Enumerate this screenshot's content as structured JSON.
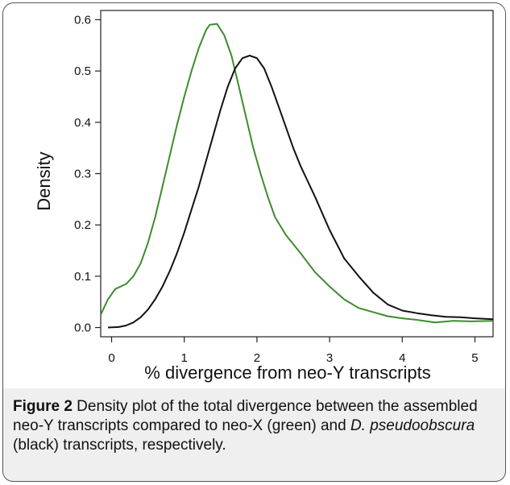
{
  "chart_data": {
    "type": "line",
    "xlabel": "% divergence from neo-Y transcripts",
    "ylabel": "Density",
    "xlim": [
      -0.15,
      5.25
    ],
    "ylim": [
      -0.018,
      0.618
    ],
    "x_ticks": [
      0,
      1,
      2,
      3,
      4,
      5
    ],
    "y_ticks": [
      0.0,
      0.1,
      0.2,
      0.3,
      0.4,
      0.5,
      0.6
    ],
    "y_tick_labels": [
      "0.0",
      "0.1",
      "0.2",
      "0.3",
      "0.4",
      "0.5",
      "0.6"
    ],
    "grid": false,
    "series": [
      {
        "color": "#3c8c2e",
        "points": [
          [
            -0.15,
            0.025
          ],
          [
            -0.05,
            0.055
          ],
          [
            0.05,
            0.075
          ],
          [
            0.2,
            0.085
          ],
          [
            0.3,
            0.1
          ],
          [
            0.4,
            0.125
          ],
          [
            0.5,
            0.165
          ],
          [
            0.6,
            0.215
          ],
          [
            0.7,
            0.275
          ],
          [
            0.8,
            0.335
          ],
          [
            0.9,
            0.395
          ],
          [
            1.0,
            0.45
          ],
          [
            1.1,
            0.5
          ],
          [
            1.2,
            0.545
          ],
          [
            1.3,
            0.58
          ],
          [
            1.35,
            0.59
          ],
          [
            1.45,
            0.592
          ],
          [
            1.55,
            0.57
          ],
          [
            1.65,
            0.53
          ],
          [
            1.75,
            0.47
          ],
          [
            1.85,
            0.41
          ],
          [
            1.95,
            0.35
          ],
          [
            2.05,
            0.3
          ],
          [
            2.15,
            0.255
          ],
          [
            2.25,
            0.215
          ],
          [
            2.4,
            0.18
          ],
          [
            2.6,
            0.145
          ],
          [
            2.8,
            0.108
          ],
          [
            3.0,
            0.08
          ],
          [
            3.2,
            0.055
          ],
          [
            3.4,
            0.038
          ],
          [
            3.6,
            0.03
          ],
          [
            3.8,
            0.022
          ],
          [
            4.0,
            0.018
          ],
          [
            4.2,
            0.015
          ],
          [
            4.45,
            0.01
          ],
          [
            4.7,
            0.013
          ],
          [
            4.95,
            0.012
          ],
          [
            5.25,
            0.013
          ]
        ]
      },
      {
        "color": "#111111",
        "points": [
          [
            -0.05,
            0.0
          ],
          [
            0.1,
            0.001
          ],
          [
            0.2,
            0.004
          ],
          [
            0.3,
            0.01
          ],
          [
            0.4,
            0.02
          ],
          [
            0.5,
            0.035
          ],
          [
            0.6,
            0.055
          ],
          [
            0.7,
            0.08
          ],
          [
            0.8,
            0.11
          ],
          [
            0.9,
            0.145
          ],
          [
            1.0,
            0.185
          ],
          [
            1.1,
            0.23
          ],
          [
            1.2,
            0.275
          ],
          [
            1.3,
            0.325
          ],
          [
            1.4,
            0.375
          ],
          [
            1.5,
            0.425
          ],
          [
            1.6,
            0.47
          ],
          [
            1.7,
            0.505
          ],
          [
            1.8,
            0.525
          ],
          [
            1.9,
            0.53
          ],
          [
            2.0,
            0.525
          ],
          [
            2.1,
            0.505
          ],
          [
            2.2,
            0.47
          ],
          [
            2.3,
            0.43
          ],
          [
            2.4,
            0.39
          ],
          [
            2.5,
            0.35
          ],
          [
            2.6,
            0.315
          ],
          [
            2.8,
            0.255
          ],
          [
            3.0,
            0.19
          ],
          [
            3.2,
            0.135
          ],
          [
            3.4,
            0.1
          ],
          [
            3.6,
            0.068
          ],
          [
            3.8,
            0.045
          ],
          [
            4.0,
            0.033
          ],
          [
            4.2,
            0.028
          ],
          [
            4.4,
            0.024
          ],
          [
            4.6,
            0.021
          ],
          [
            4.8,
            0.02
          ],
          [
            5.0,
            0.018
          ],
          [
            5.25,
            0.016
          ]
        ]
      }
    ]
  },
  "caption": {
    "label": "Figure 2",
    "text_1": " Density plot of the total divergence between the assembled neo-Y transcripts compared to neo-X (green) and ",
    "species": "D. pseudoobscura",
    "text_2": " (black) transcripts, respectively."
  }
}
